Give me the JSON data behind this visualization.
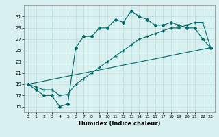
{
  "xlabel": "Humidex (Indice chaleur)",
  "ylabel": "",
  "background_color": "#d8f0f0",
  "grid_color": "#c0e0e0",
  "line_color": "#006868",
  "xlim": [
    -0.5,
    23.5
  ],
  "ylim": [
    14,
    33
  ],
  "yticks": [
    15,
    17,
    19,
    21,
    23,
    25,
    27,
    29,
    31
  ],
  "xticks": [
    0,
    1,
    2,
    3,
    4,
    5,
    6,
    7,
    8,
    9,
    10,
    11,
    12,
    13,
    14,
    15,
    16,
    17,
    18,
    19,
    20,
    21,
    22,
    23
  ],
  "series1_x": [
    0,
    1,
    2,
    3,
    4,
    5,
    6,
    7,
    8,
    9,
    10,
    11,
    12,
    13,
    14,
    15,
    16,
    17,
    18,
    19,
    20,
    21,
    22,
    23
  ],
  "series1_y": [
    19,
    18,
    17,
    17,
    15,
    15.5,
    25.5,
    27.5,
    27.5,
    29,
    29,
    30.5,
    30,
    32,
    31,
    30.5,
    29.5,
    29.5,
    30,
    29.5,
    29,
    29,
    27,
    25.5
  ],
  "series2_x": [
    0,
    1,
    2,
    3,
    4,
    5,
    6,
    7,
    8,
    9,
    10,
    11,
    12,
    13,
    14,
    15,
    16,
    17,
    18,
    19,
    20,
    21,
    22,
    23
  ],
  "series2_y": [
    19,
    18.5,
    18,
    18,
    17,
    17.2,
    19,
    20,
    21,
    22,
    23,
    24,
    25,
    26,
    27,
    27.5,
    28,
    28.5,
    29,
    29,
    29.5,
    30,
    30,
    25.5
  ],
  "series3_x": [
    0,
    23
  ],
  "series3_y": [
    19,
    25.5
  ]
}
